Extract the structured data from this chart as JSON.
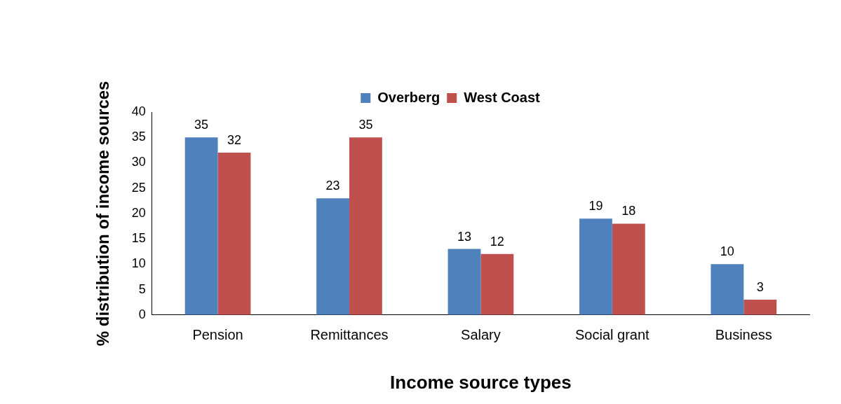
{
  "chart_data": {
    "type": "bar",
    "xlabel": "Income source types",
    "ylabel": "% distribution of income sources",
    "categories": [
      "Pension",
      "Remittances",
      "Salary",
      "Social grant",
      "Business"
    ],
    "series": [
      {
        "name": "Overberg",
        "color": "#4f81bd",
        "values": [
          35,
          23,
          13,
          19,
          10
        ]
      },
      {
        "name": "West Coast",
        "color": "#c0504d",
        "values": [
          32,
          35,
          12,
          18,
          3
        ]
      }
    ],
    "ylim": [
      0,
      40
    ],
    "yticks": [
      0,
      5,
      10,
      15,
      20,
      25,
      30,
      35,
      40
    ],
    "grid": false,
    "legend": "top",
    "data_labels": true
  }
}
